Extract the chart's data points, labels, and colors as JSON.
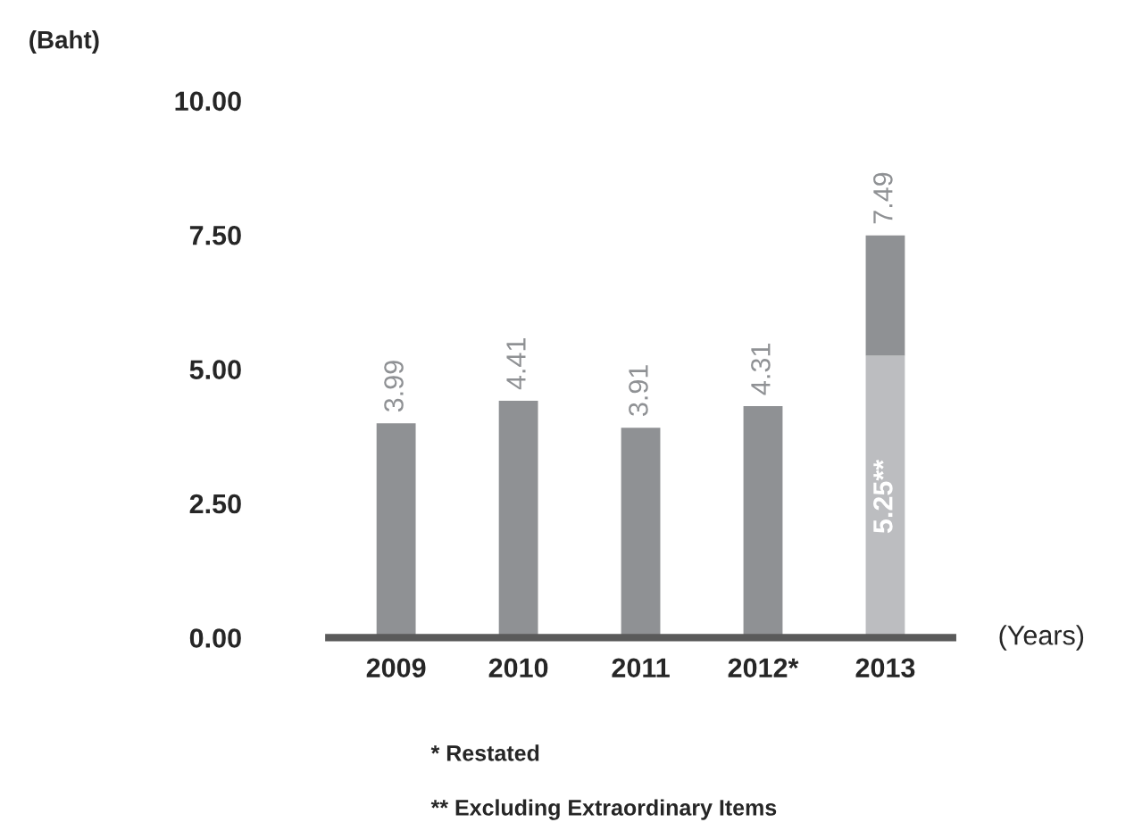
{
  "chart_data": {
    "type": "bar",
    "stacked": true,
    "ylabel": "(Baht)",
    "xlabel": "(Years)",
    "categories": [
      "2009",
      "2010",
      "2011",
      "2012*",
      "2013"
    ],
    "series": [
      {
        "color": "#bcbdc0",
        "values": [
          null,
          null,
          null,
          null,
          5.25
        ],
        "value_labels": [
          null,
          null,
          null,
          null,
          "5.25**"
        ]
      },
      {
        "color": "#8f9194",
        "values": [
          3.99,
          4.41,
          3.91,
          4.31,
          2.24
        ]
      }
    ],
    "totals": [
      "3.99",
      "4.41",
      "3.91",
      "4.31",
      "7.49"
    ],
    "ylim": [
      0,
      10
    ],
    "yticks": [
      {
        "value": 0,
        "label": "0.00"
      },
      {
        "value": 2.5,
        "label": "2.50"
      },
      {
        "value": 5,
        "label": "5.00"
      },
      {
        "value": 7.5,
        "label": "7.50"
      },
      {
        "value": 10,
        "label": "10.00"
      }
    ],
    "grid": false,
    "annotations": [
      "* Restated",
      "** Excluding Extraordinary Items"
    ]
  }
}
